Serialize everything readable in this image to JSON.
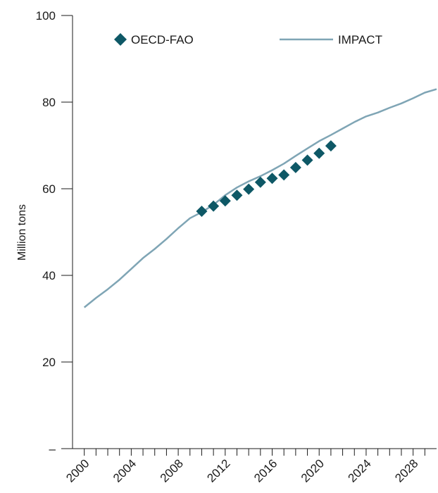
{
  "chart_data": {
    "type": "line",
    "title": "",
    "xlabel": "",
    "ylabel": "Million tons",
    "xlim": [
      1999,
      2030
    ],
    "ylim": [
      0,
      100
    ],
    "x_tick_labels": [
      "2000",
      "2004",
      "2008",
      "2012",
      "2016",
      "2020",
      "2024",
      "2028"
    ],
    "y_tick_labels": [
      "–",
      "20",
      "40",
      "60",
      "80",
      "100"
    ],
    "y_tick_values": [
      0,
      20,
      40,
      60,
      80,
      100
    ],
    "grid": false,
    "legend_placement": "top",
    "series": [
      {
        "name": "OECD-FAO",
        "kind": "scatter",
        "marker": "diamond",
        "color": "#0e5866",
        "x": [
          2010,
          2011,
          2012,
          2013,
          2014,
          2015,
          2016,
          2017,
          2018,
          2019,
          2020,
          2021
        ],
        "y": [
          54.8,
          56.0,
          57.2,
          58.5,
          59.9,
          61.5,
          62.4,
          63.2,
          64.9,
          66.6,
          68.2,
          69.9
        ]
      },
      {
        "name": "IMPACT",
        "kind": "line",
        "color": "#7fa5b5",
        "x": [
          2000,
          2001,
          2002,
          2003,
          2004,
          2005,
          2006,
          2007,
          2008,
          2009,
          2010,
          2011,
          2012,
          2013,
          2014,
          2015,
          2016,
          2017,
          2018,
          2019,
          2020,
          2021,
          2022,
          2023,
          2024,
          2025,
          2026,
          2027,
          2028,
          2029,
          2030
        ],
        "y": [
          32.6,
          34.8,
          36.8,
          39.0,
          41.5,
          44.0,
          46.1,
          48.4,
          50.9,
          53.2,
          54.6,
          56.3,
          58.5,
          60.3,
          61.7,
          62.9,
          64.3,
          65.8,
          67.6,
          69.3,
          71.0,
          72.4,
          73.9,
          75.4,
          76.7,
          77.6,
          78.7,
          79.7,
          80.9,
          82.2,
          83.0
        ]
      }
    ]
  }
}
